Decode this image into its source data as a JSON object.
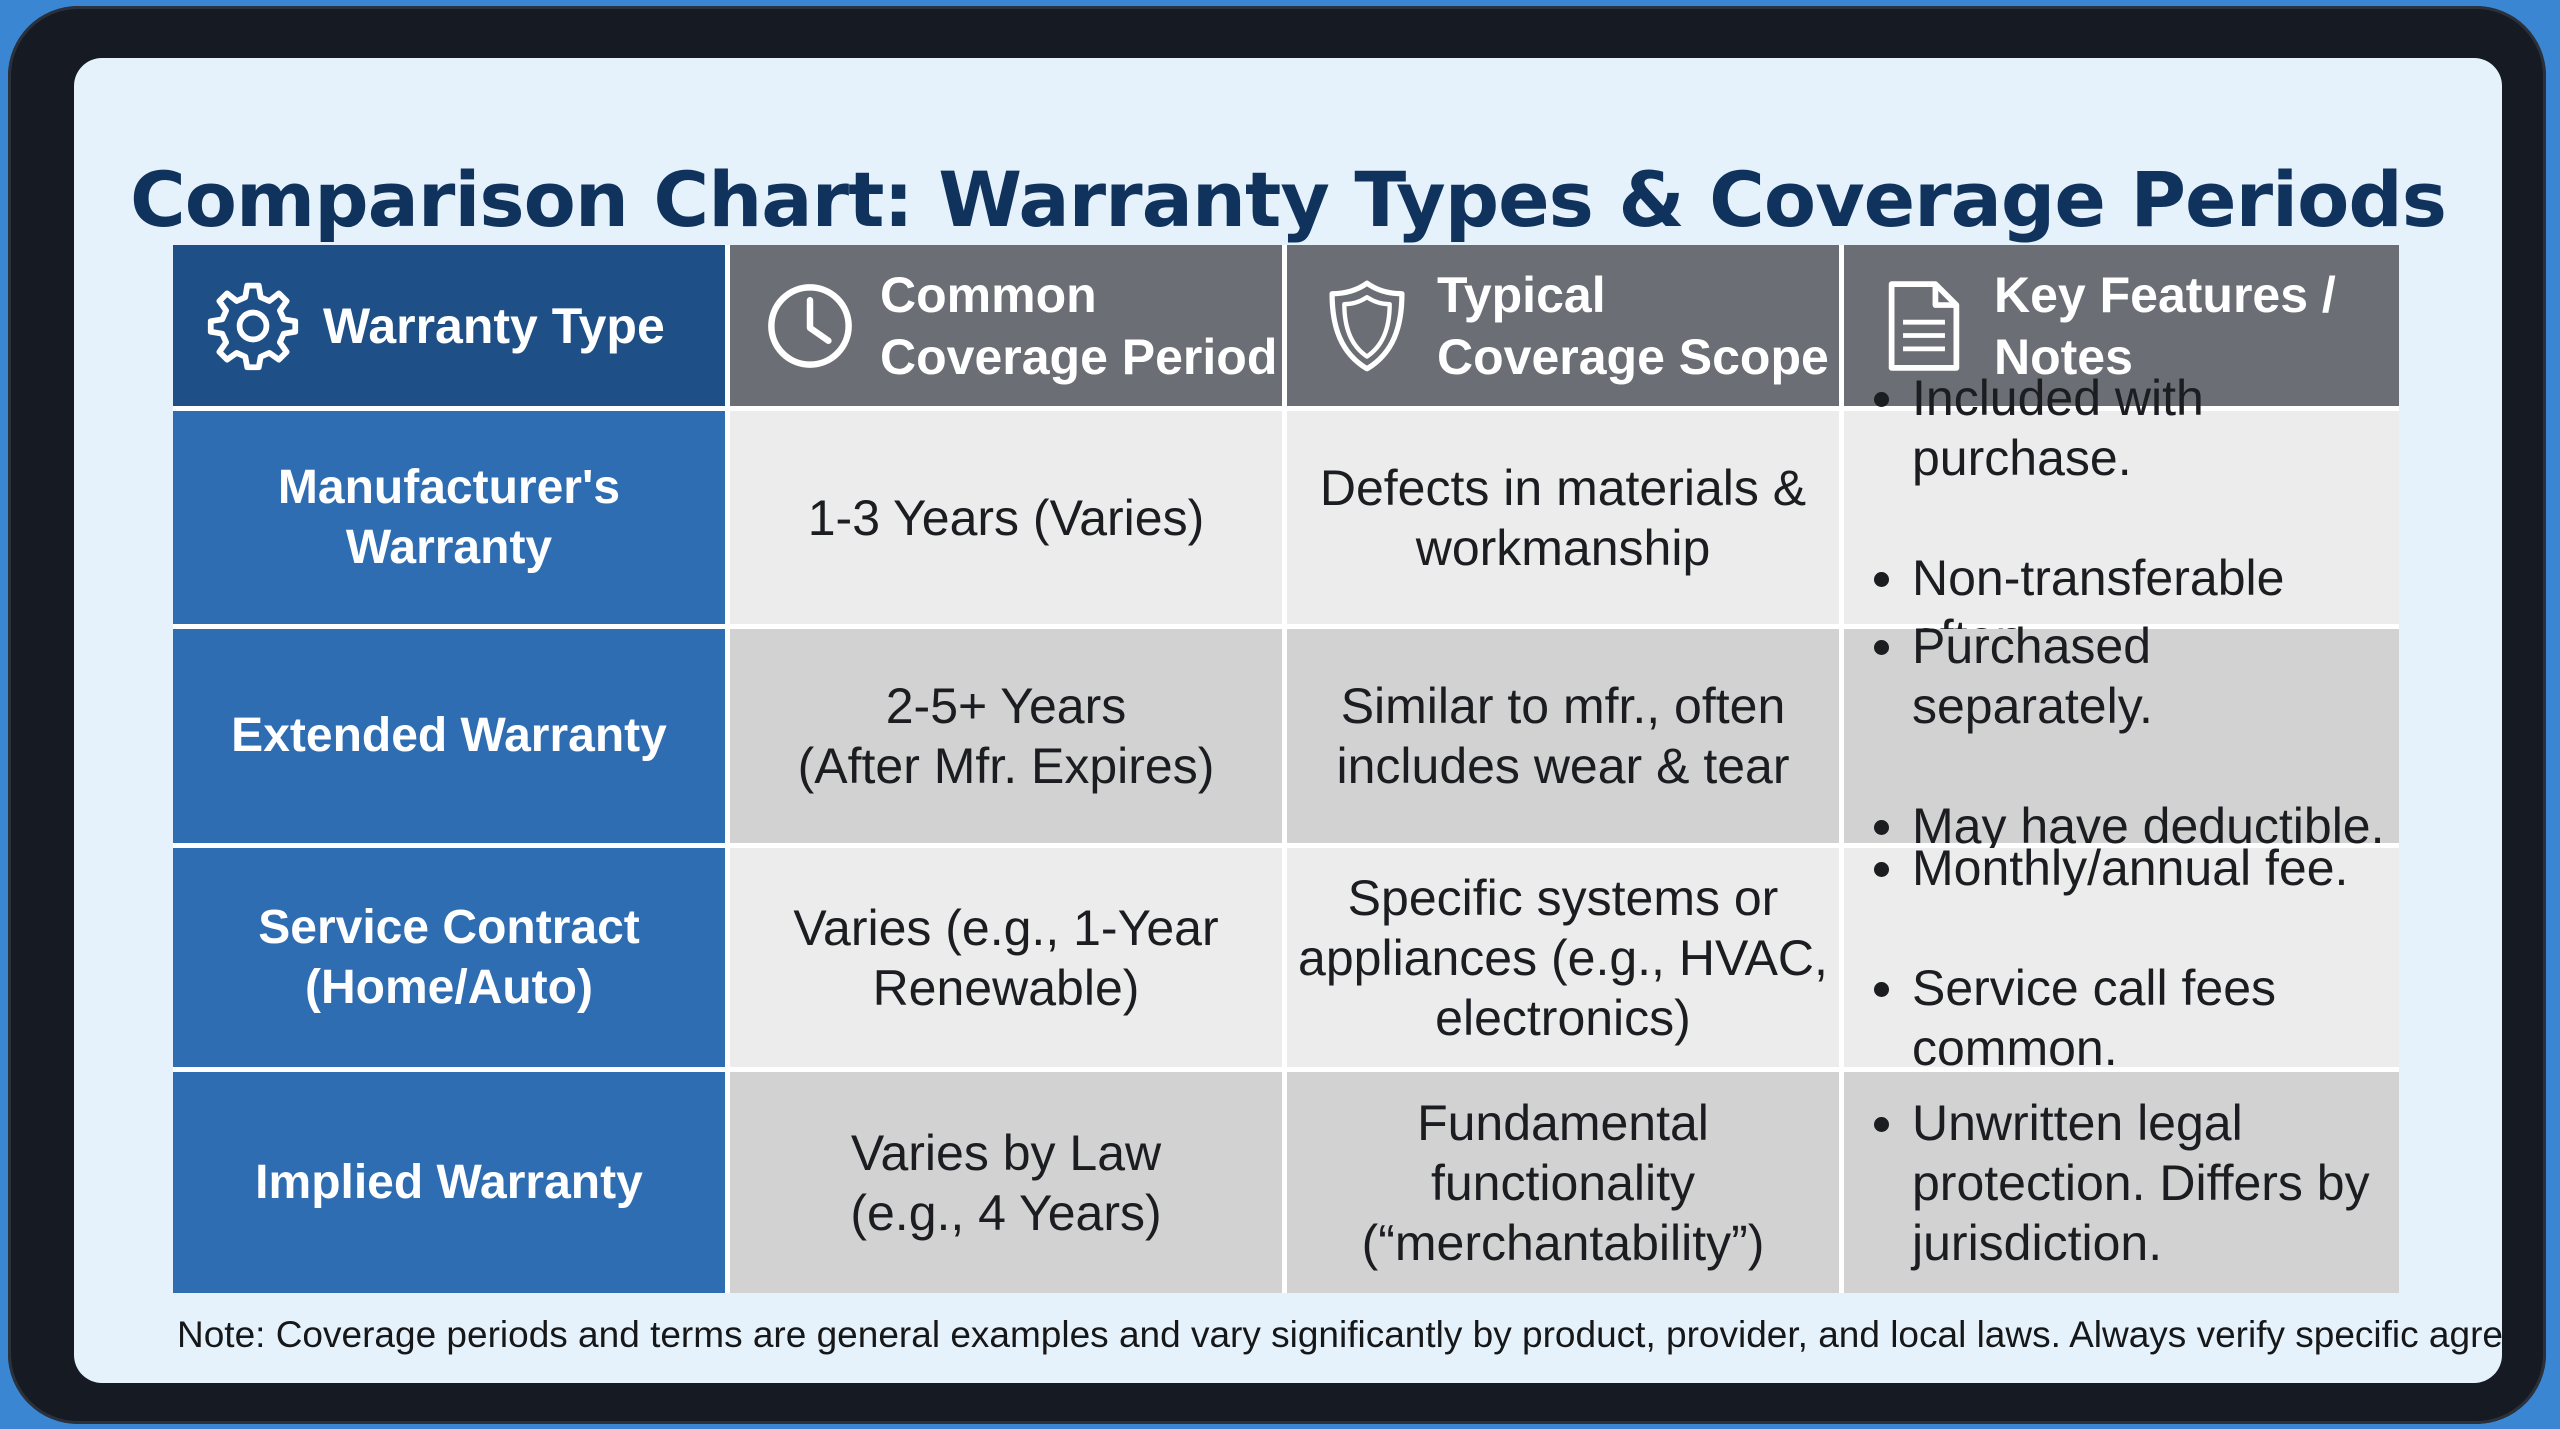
{
  "title": "Comparison Chart: Warranty Types & Coverage Periods",
  "table": {
    "headers": [
      {
        "label": "Warranty Type",
        "icon": "gear-icon"
      },
      {
        "label": "Common\nCoverage Period",
        "icon": "clock-icon"
      },
      {
        "label": "Typical\nCoverage Scope",
        "icon": "shield-icon"
      },
      {
        "label": "Key Features /\nNotes",
        "icon": "document-icon"
      }
    ],
    "rows": [
      {
        "type": "Manufacturer's\nWarranty",
        "period": "1-3 Years (Varies)",
        "scope": "Defects in materials &\nworkmanship",
        "notes": [
          "Included with purchase.",
          "Non-transferable often."
        ]
      },
      {
        "type": "Extended Warranty",
        "period": "2-5+ Years\n(After Mfr. Expires)",
        "scope": "Similar to mfr., often\nincludes wear & tear",
        "notes": [
          "Purchased separately.",
          "May have deductible."
        ]
      },
      {
        "type": "Service Contract\n(Home/Auto)",
        "period": "Varies (e.g., 1-Year\nRenewable)",
        "scope": "Specific systems or\nappliances (e.g., HVAC,\nelectronics)",
        "notes": [
          "Monthly/annual fee.",
          "Service call fees\ncommon."
        ]
      },
      {
        "type": "Implied Warranty",
        "period": "Varies by Law\n(e.g., 4 Years)",
        "scope": "Fundamental\nfunctionality\n(“merchantability”)",
        "notes": [
          "Unwritten legal\nprotection. Differs by\njurisdiction."
        ]
      }
    ]
  },
  "note": "Note: Coverage periods and terms are general examples and vary significantly by product, provider, and local laws. Always verify specific agreements.",
  "colors": {
    "title": "#10335d",
    "header_first": "#1e4f86",
    "header": "#6b6e74",
    "row_head": "#2f6db3",
    "cell_light": "#ececec",
    "cell_dark": "#d2d2d3"
  }
}
